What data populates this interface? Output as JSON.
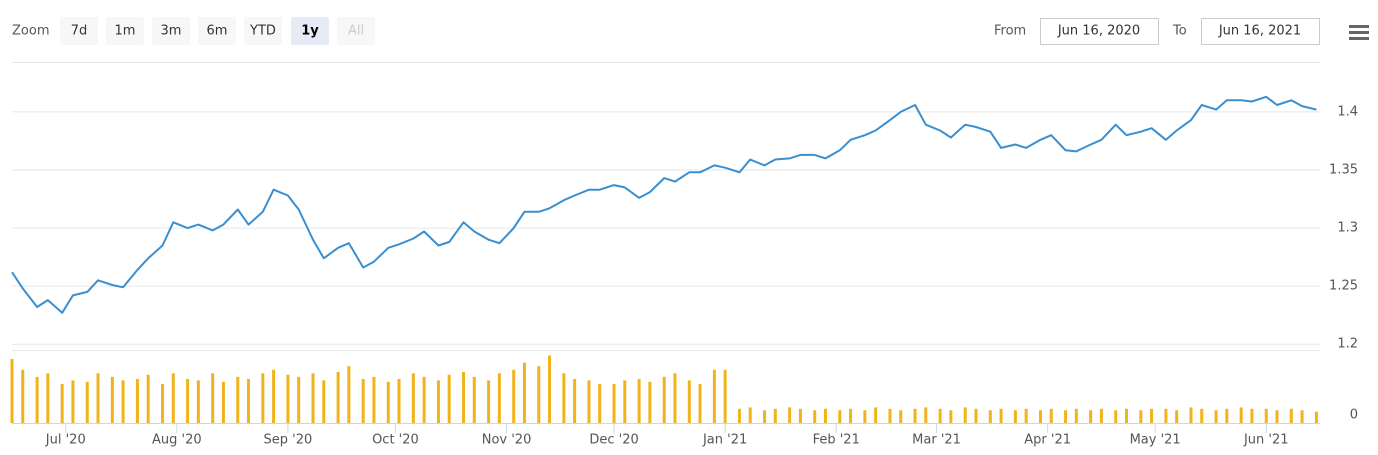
{
  "toolbar": {
    "zoom_label": "Zoom",
    "buttons": [
      "7d",
      "1m",
      "3m",
      "6m",
      "YTD",
      "1y",
      "All"
    ],
    "selected": 5,
    "disabled": [
      6
    ],
    "from_label": "From",
    "from": "Jun 16, 2020",
    "to_label": "To",
    "to": "Jun 16, 2021"
  },
  "chart_data": {
    "type": "line",
    "x": [
      "2020-06-16",
      "2020-06-19",
      "2020-06-23",
      "2020-06-26",
      "2020-06-30",
      "2020-07-03",
      "2020-07-07",
      "2020-07-10",
      "2020-07-14",
      "2020-07-17",
      "2020-07-21",
      "2020-07-24",
      "2020-07-28",
      "2020-07-31",
      "2020-08-04",
      "2020-08-07",
      "2020-08-11",
      "2020-08-14",
      "2020-08-18",
      "2020-08-21",
      "2020-08-25",
      "2020-08-28",
      "2020-09-01",
      "2020-09-04",
      "2020-09-08",
      "2020-09-11",
      "2020-09-15",
      "2020-09-18",
      "2020-09-22",
      "2020-09-25",
      "2020-09-29",
      "2020-10-02",
      "2020-10-06",
      "2020-10-09",
      "2020-10-13",
      "2020-10-16",
      "2020-10-20",
      "2020-10-23",
      "2020-10-27",
      "2020-10-30",
      "2020-11-03",
      "2020-11-06",
      "2020-11-10",
      "2020-11-13",
      "2020-11-17",
      "2020-11-20",
      "2020-11-24",
      "2020-11-27",
      "2020-12-01",
      "2020-12-04",
      "2020-12-08",
      "2020-12-11",
      "2020-12-15",
      "2020-12-18",
      "2020-12-22",
      "2020-12-25",
      "2020-12-29",
      "2021-01-01",
      "2021-01-05",
      "2021-01-08",
      "2021-01-12",
      "2021-01-15",
      "2021-01-19",
      "2021-01-22",
      "2021-01-26",
      "2021-01-29",
      "2021-02-02",
      "2021-02-05",
      "2021-02-09",
      "2021-02-12",
      "2021-02-16",
      "2021-02-19",
      "2021-02-23",
      "2021-02-26",
      "2021-03-02",
      "2021-03-05",
      "2021-03-09",
      "2021-03-12",
      "2021-03-16",
      "2021-03-19",
      "2021-03-23",
      "2021-03-26",
      "2021-03-30",
      "2021-04-02",
      "2021-04-06",
      "2021-04-09",
      "2021-04-13",
      "2021-04-16",
      "2021-04-20",
      "2021-04-23",
      "2021-04-27",
      "2021-04-30",
      "2021-05-04",
      "2021-05-07",
      "2021-05-11",
      "2021-05-14",
      "2021-05-18",
      "2021-05-21",
      "2021-05-25",
      "2021-05-28",
      "2021-06-01",
      "2021-06-04",
      "2021-06-08",
      "2021-06-11",
      "2021-06-15"
    ],
    "xlim": [
      "2020-06-16",
      "2021-06-16"
    ],
    "xticks": [
      {
        "value": "2020-07-01",
        "label": "Jul '20"
      },
      {
        "value": "2020-08-01",
        "label": "Aug '20"
      },
      {
        "value": "2020-09-01",
        "label": "Sep '20"
      },
      {
        "value": "2020-10-01",
        "label": "Oct '20"
      },
      {
        "value": "2020-11-01",
        "label": "Nov '20"
      },
      {
        "value": "2020-12-01",
        "label": "Dec '20"
      },
      {
        "value": "2021-01-01",
        "label": "Jan '21"
      },
      {
        "value": "2021-02-01",
        "label": "Feb '21"
      },
      {
        "value": "2021-03-01",
        "label": "Mar '21"
      },
      {
        "value": "2021-04-01",
        "label": "Apr '21"
      },
      {
        "value": "2021-05-01",
        "label": "May '21"
      },
      {
        "value": "2021-06-01",
        "label": "Jun '21"
      }
    ],
    "ylim": [
      1.195,
      1.443
    ],
    "yticks": [
      1.2,
      1.25,
      1.3,
      1.35,
      1.4
    ],
    "y2lim": [
      0,
      100
    ],
    "y2ticks": [
      0
    ],
    "grid": true,
    "series": [
      {
        "type": "line",
        "color": "#3a8fd0",
        "values": [
          1.262,
          1.248,
          1.232,
          1.238,
          1.227,
          1.242,
          1.245,
          1.255,
          1.251,
          1.249,
          1.264,
          1.274,
          1.285,
          1.305,
          1.3,
          1.303,
          1.298,
          1.303,
          1.316,
          1.303,
          1.314,
          1.333,
          1.328,
          1.316,
          1.29,
          1.274,
          1.283,
          1.287,
          1.266,
          1.271,
          1.283,
          1.286,
          1.291,
          1.297,
          1.285,
          1.288,
          1.305,
          1.297,
          1.29,
          1.287,
          1.3,
          1.314,
          1.314,
          1.317,
          1.324,
          1.328,
          1.333,
          1.333,
          1.337,
          1.335,
          1.326,
          1.331,
          1.343,
          1.34,
          1.348,
          1.348,
          1.354,
          1.352,
          1.348,
          1.359,
          1.354,
          1.359,
          1.36,
          1.363,
          1.363,
          1.36,
          1.367,
          1.376,
          1.38,
          1.384,
          1.393,
          1.4,
          1.406,
          1.389,
          1.384,
          1.378,
          1.389,
          1.387,
          1.383,
          1.369,
          1.372,
          1.369,
          1.376,
          1.38,
          1.367,
          1.366,
          1.372,
          1.376,
          1.389,
          1.38,
          1.383,
          1.386,
          1.376,
          1.384,
          1.393,
          1.406,
          1.402,
          1.41,
          1.41,
          1.409,
          1.413,
          1.406,
          1.41,
          1.405,
          1.402
        ]
      },
      {
        "type": "column",
        "axis": "y2",
        "color": "#f1b31c",
        "values": [
          90,
          75,
          65,
          70,
          55,
          60,
          58,
          70,
          65,
          60,
          62,
          68,
          55,
          70,
          62,
          60,
          70,
          58,
          65,
          62,
          70,
          75,
          68,
          65,
          70,
          60,
          72,
          80,
          62,
          65,
          58,
          62,
          70,
          65,
          60,
          68,
          72,
          65,
          60,
          70,
          75,
          85,
          80,
          95,
          70,
          62,
          60,
          55,
          55,
          60,
          62,
          58,
          65,
          70,
          60,
          55,
          75,
          75,
          20,
          22,
          18,
          20,
          22,
          20,
          18,
          20,
          18,
          20,
          18,
          22,
          20,
          18,
          20,
          22,
          20,
          18,
          22,
          20,
          18,
          20,
          18,
          20,
          18,
          20,
          18,
          20,
          18,
          20,
          18,
          20,
          18,
          20,
          20,
          18,
          22,
          20,
          18,
          20,
          22,
          20,
          20,
          18,
          20,
          18,
          16
        ]
      }
    ]
  }
}
